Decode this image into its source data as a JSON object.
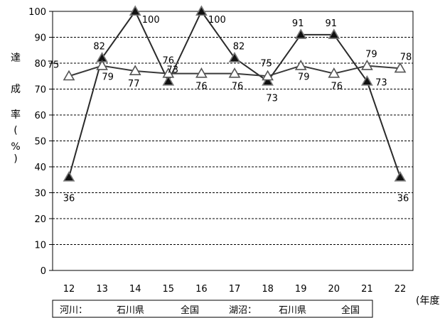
{
  "chart_data": {
    "type": "line",
    "categories": [
      "12",
      "13",
      "14",
      "15",
      "16",
      "17",
      "18",
      "19",
      "20",
      "21",
      "22"
    ],
    "x_unit_label": "(年度)",
    "ylabel": [
      "達",
      "成",
      "率",
      "(",
      "%",
      ")"
    ],
    "ylim": [
      0,
      100
    ],
    "yticks": [
      0,
      10,
      20,
      30,
      40,
      50,
      60,
      70,
      80,
      90,
      100
    ],
    "grid": true,
    "series": [
      {
        "name": "石川県",
        "group": "河川",
        "marker": "filled-triangle",
        "color": "#2a2a2a",
        "values": [
          36,
          82,
          100,
          73,
          100,
          82,
          73,
          91,
          91,
          73,
          36
        ]
      },
      {
        "name": "全国",
        "group": "河川",
        "marker": "open-triangle",
        "color": "#3a3a3a",
        "values": [
          75,
          79,
          77,
          76,
          76,
          76,
          75,
          79,
          76,
          79,
          78
        ]
      }
    ],
    "legend": {
      "placement": "bottom",
      "items": [
        "河川：",
        "石川県",
        "全国",
        "湖沼：",
        "石川県",
        "全国"
      ]
    }
  }
}
